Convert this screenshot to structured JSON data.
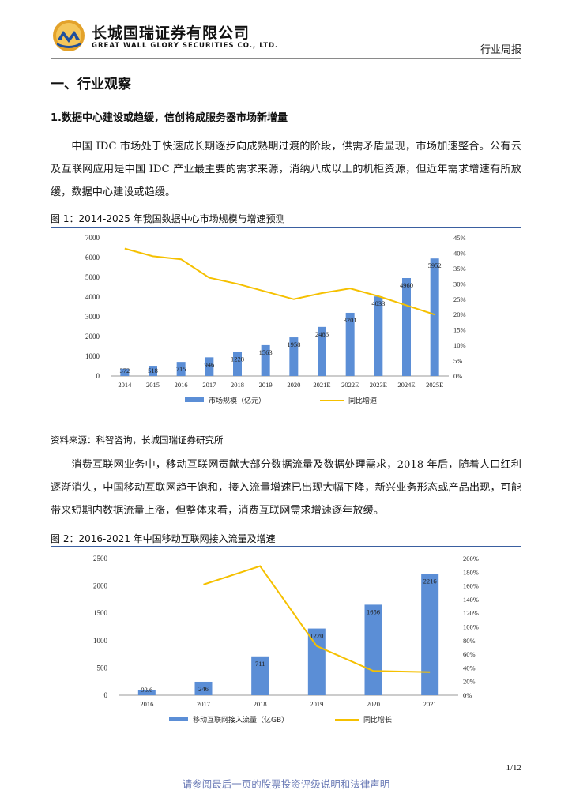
{
  "header": {
    "company_cn": "长城国瑞证券有限公司",
    "company_en": "GREAT WALL GLORY SECURITIES CO., LTD.",
    "doc_type": "行业周报",
    "brand_color": "#e0a021"
  },
  "section": {
    "title": "一、行业观察",
    "subtitle": "1.数据中心建设或趋缓，信创将成服务器市场新增量"
  },
  "paragraphs": [
    "中国 IDC 市场处于快速成长期逐步向成熟期过渡的阶段，供需矛盾显现，市场加速整合。公有云及互联网应用是中国 IDC 产业最主要的需求来源，消纳八成以上的机柜资源，但近年需求增速有所放缓，数据中心建设或趋缓。",
    "消费互联网业务中，移动互联网贡献大部分数据流量及数据处理需求，2018 年后，随着人口红利逐渐消失，中国移动互联网趋于饱和，接入流量增速已出现大幅下降，新兴业务形态或产品出现，可能带来短期内数据流量上涨，但整体来看，消费互联网需求增速逐年放缓。"
  ],
  "figure1": {
    "title": "图 1：2014-2025 年我国数据中心市场规模与增速预测",
    "source": "资料来源：科智咨询，长城国瑞证券研究所"
  },
  "figure2": {
    "title": "图 2：2016-2021 年中国移动互联网接入流量及增速"
  },
  "chart_data": [
    {
      "type": "bar",
      "categories": [
        "2014",
        "2015",
        "2016",
        "2017",
        "2018",
        "2019",
        "2020",
        "2021E",
        "2022E",
        "2023E",
        "2024E",
        "2025E"
      ],
      "series": [
        {
          "name": "市场规模（亿元）",
          "type": "bar",
          "axis": "left",
          "values": [
            372,
            518,
            715,
            946,
            1228,
            1563,
            1958,
            2486,
            3201,
            4033,
            4960,
            5952
          ],
          "labels": [
            "372",
            "518",
            "715",
            "946",
            "1228",
            "1563",
            "1958",
            "2486",
            "3201",
            "4033",
            "4960",
            "5952"
          ]
        },
        {
          "name": "同比增速",
          "type": "line",
          "axis": "right",
          "values": [
            0.415,
            0.39,
            0.38,
            0.32,
            0.3,
            0.275,
            0.25,
            0.27,
            0.285,
            0.26,
            0.23,
            0.2
          ]
        }
      ],
      "ylim": [
        0,
        7000
      ],
      "yticks": [
        "0",
        "1000",
        "2000",
        "3000",
        "4000",
        "5000",
        "6000",
        "7000"
      ],
      "y2lim": [
        0,
        0.45
      ],
      "y2ticks": [
        "0%",
        "5%",
        "10%",
        "15%",
        "20%",
        "25%",
        "30%",
        "35%",
        "40%",
        "45%"
      ],
      "colors": {
        "bar": "#5b8ed6",
        "line": "#f5c000"
      },
      "legend": "bottom"
    },
    {
      "type": "bar",
      "categories": [
        "2016",
        "2017",
        "2018",
        "2019",
        "2020",
        "2021"
      ],
      "series": [
        {
          "name": "移动互联网接入流量（亿GB）",
          "type": "bar",
          "axis": "left",
          "values": [
            93.6,
            246,
            711,
            1220,
            1656,
            2216
          ],
          "labels": [
            "93.6",
            "246",
            "711",
            "1220",
            "1656",
            "2216"
          ]
        },
        {
          "name": "同比增长",
          "type": "line",
          "axis": "right",
          "values": [
            null,
            1.62,
            1.89,
            0.72,
            0.355,
            0.338
          ]
        }
      ],
      "ylim": [
        0,
        2500
      ],
      "yticks": [
        "0",
        "500",
        "1000",
        "1500",
        "2000",
        "2500"
      ],
      "y2lim": [
        0,
        2.0
      ],
      "y2ticks": [
        "0%",
        "20%",
        "40%",
        "60%",
        "80%",
        "100%",
        "120%",
        "140%",
        "160%",
        "180%",
        "200%"
      ],
      "colors": {
        "bar": "#5b8ed6",
        "line": "#f5c000"
      },
      "legend": "bottom"
    }
  ],
  "footer": {
    "page": "1/12",
    "disclaimer": "请参阅最后一页的股票投资评级说明和法律声明"
  }
}
